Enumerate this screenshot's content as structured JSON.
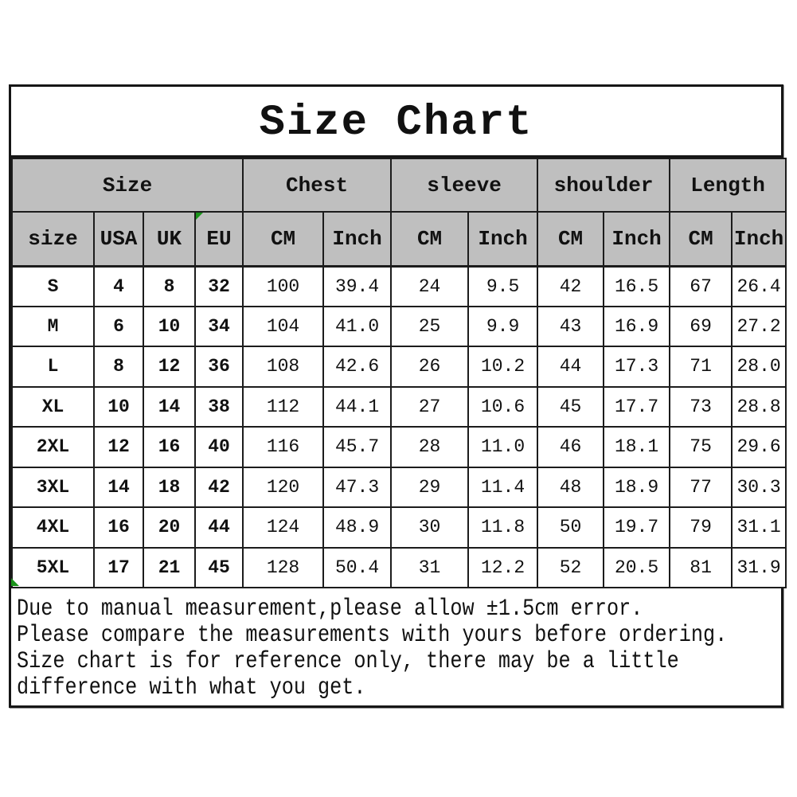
{
  "title": "Size Chart",
  "chart_data": {
    "type": "table",
    "title": "Size Chart",
    "column_groups": [
      {
        "label": "Size",
        "span": 4
      },
      {
        "label": "Chest",
        "span": 2
      },
      {
        "label": "sleeve",
        "span": 2
      },
      {
        "label": "shoulder",
        "span": 2
      },
      {
        "label": "Length",
        "span": 2
      }
    ],
    "columns": [
      "size",
      "USA",
      "UK",
      "EU",
      "CM",
      "Inch",
      "CM",
      "Inch",
      "CM",
      "Inch",
      "CM",
      "Inch"
    ],
    "rows": [
      [
        "S",
        "4",
        "8",
        "32",
        "100",
        "39.4",
        "24",
        "9.5",
        "42",
        "16.5",
        "67",
        "26.4"
      ],
      [
        "M",
        "6",
        "10",
        "34",
        "104",
        "41.0",
        "25",
        "9.9",
        "43",
        "16.9",
        "69",
        "27.2"
      ],
      [
        "L",
        "8",
        "12",
        "36",
        "108",
        "42.6",
        "26",
        "10.2",
        "44",
        "17.3",
        "71",
        "28.0"
      ],
      [
        "XL",
        "10",
        "14",
        "38",
        "112",
        "44.1",
        "27",
        "10.6",
        "45",
        "17.7",
        "73",
        "28.8"
      ],
      [
        "2XL",
        "12",
        "16",
        "40",
        "116",
        "45.7",
        "28",
        "11.0",
        "46",
        "18.1",
        "75",
        "29.6"
      ],
      [
        "3XL",
        "14",
        "18",
        "42",
        "120",
        "47.3",
        "29",
        "11.4",
        "48",
        "18.9",
        "77",
        "30.3"
      ],
      [
        "4XL",
        "16",
        "20",
        "44",
        "124",
        "48.9",
        "30",
        "11.8",
        "50",
        "19.7",
        "79",
        "31.1"
      ],
      [
        "5XL",
        "17",
        "21",
        "45",
        "128",
        "50.4",
        "31",
        "12.2",
        "52",
        "20.5",
        "81",
        "31.9"
      ]
    ],
    "notes": [
      "Due to manual measurement,please allow ±1.5cm error.",
      "Please compare the measurements with yours before ordering.",
      "Size chart is for reference only, there may be a little",
      "difference with what you get."
    ]
  },
  "icons": {
    "eu_corner_flag": "green-triangle",
    "bottom_corner_flag": "green-triangle"
  },
  "colors": {
    "header_bg": "#bfbfbf",
    "border": "#1c1c1c",
    "flag_green": "#1a941a",
    "text": "#111111",
    "background": "#ffffff"
  }
}
